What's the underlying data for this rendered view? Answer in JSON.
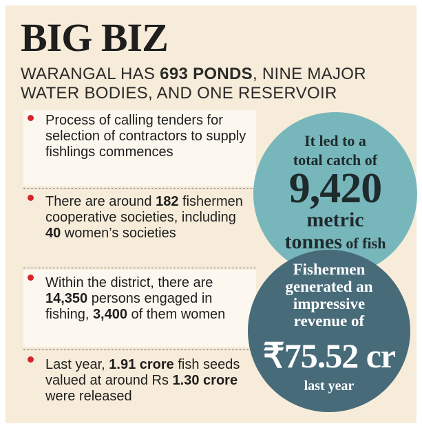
{
  "header": {
    "title": "BIG BIZ",
    "subtitle_before": "WARANGAL HAS ",
    "subtitle_bold": "693 PONDS",
    "subtitle_after": ", NINE MAJOR WATER BODIES, AND ONE RESERVOIR"
  },
  "facts": [
    {
      "p1": "Process of calling tenders for selection of contractors to supply fishlings commences"
    },
    {
      "p1": "There are around ",
      "b1": "182",
      "p2": " fishermen cooperative societies, including ",
      "b2": "40",
      "p3": " women’s societies"
    },
    {
      "p1": "Within the district, there are ",
      "b1": "14,350",
      "p2": " persons engaged in fishing, ",
      "b2": "3,400",
      "p3": " of them women"
    },
    {
      "p1": "Last year, ",
      "b1": "1.91 crore",
      "p2": " fish seeds valued at around Rs ",
      "b2": "1.30 crore",
      "p3": " were released"
    }
  ],
  "catch_circle": {
    "intro_line1": "It led to a",
    "intro_line2": "total catch of",
    "value": "9,420",
    "unit": "metric",
    "tail_big": "tonnes",
    "tail_small": " of fish"
  },
  "revenue_circle": {
    "intro_line1": "Fishermen",
    "intro_line2": "generated an",
    "intro_line3": "impressive",
    "intro_line4": "revenue of",
    "value": "₹75.52 cr",
    "tail": "last year"
  },
  "colors": {
    "background": "#f7ecd9",
    "bullet": "#d4252b",
    "circle_teal": "#77b7bb",
    "circle_slate": "#486b7a"
  }
}
